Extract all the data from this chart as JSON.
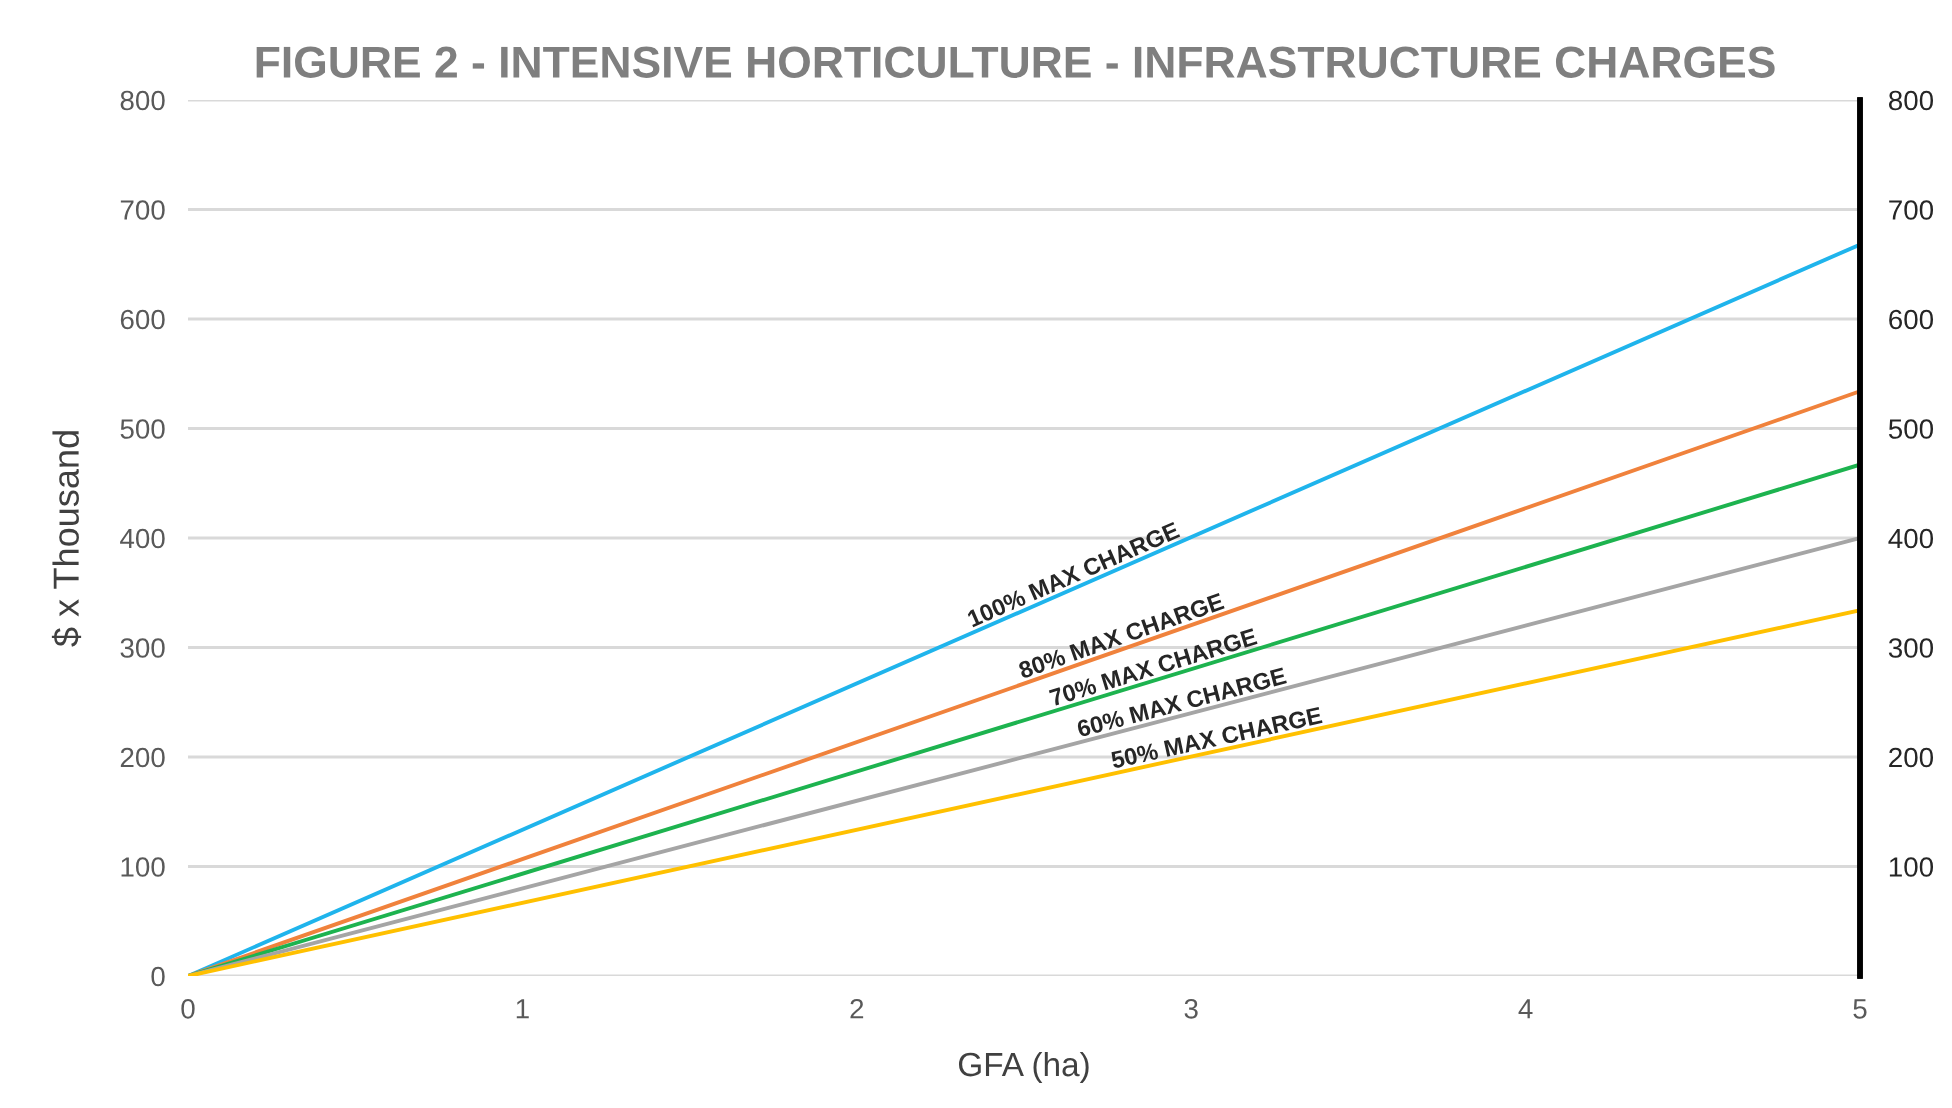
{
  "chart_data": {
    "type": "line",
    "title": "FIGURE 2 - INTENSIVE HORTICULTURE - INFRASTRUCTURE CHARGES",
    "xlabel": "GFA (ha)",
    "ylabel": "$ x Thousand",
    "x": [
      0,
      5
    ],
    "series": [
      {
        "name": "100% MAX CHARGE",
        "color": "#1fb4ec",
        "values": [
          0,
          668
        ]
      },
      {
        "name": "80% MAX CHARGE",
        "color": "#f0823c",
        "values": [
          0,
          534
        ]
      },
      {
        "name": "70% MAX CHARGE",
        "color": "#1db34f",
        "values": [
          0,
          467
        ]
      },
      {
        "name": "60% MAX CHARGE",
        "color": "#a5a5a5",
        "values": [
          0,
          400
        ]
      },
      {
        "name": "50% MAX CHARGE",
        "color": "#ffc000",
        "values": [
          0,
          334
        ]
      }
    ],
    "xlim": [
      0,
      5
    ],
    "xticks": [
      0,
      1,
      2,
      3,
      4,
      5
    ],
    "ylim": [
      0,
      800
    ],
    "yticks": [
      0,
      100,
      200,
      300,
      400,
      500,
      600,
      700,
      800
    ],
    "y2lim": [
      0,
      800
    ],
    "y2ticks": [
      100,
      200,
      300,
      400,
      500,
      600,
      700,
      800
    ],
    "grid": "y",
    "legend": false
  }
}
